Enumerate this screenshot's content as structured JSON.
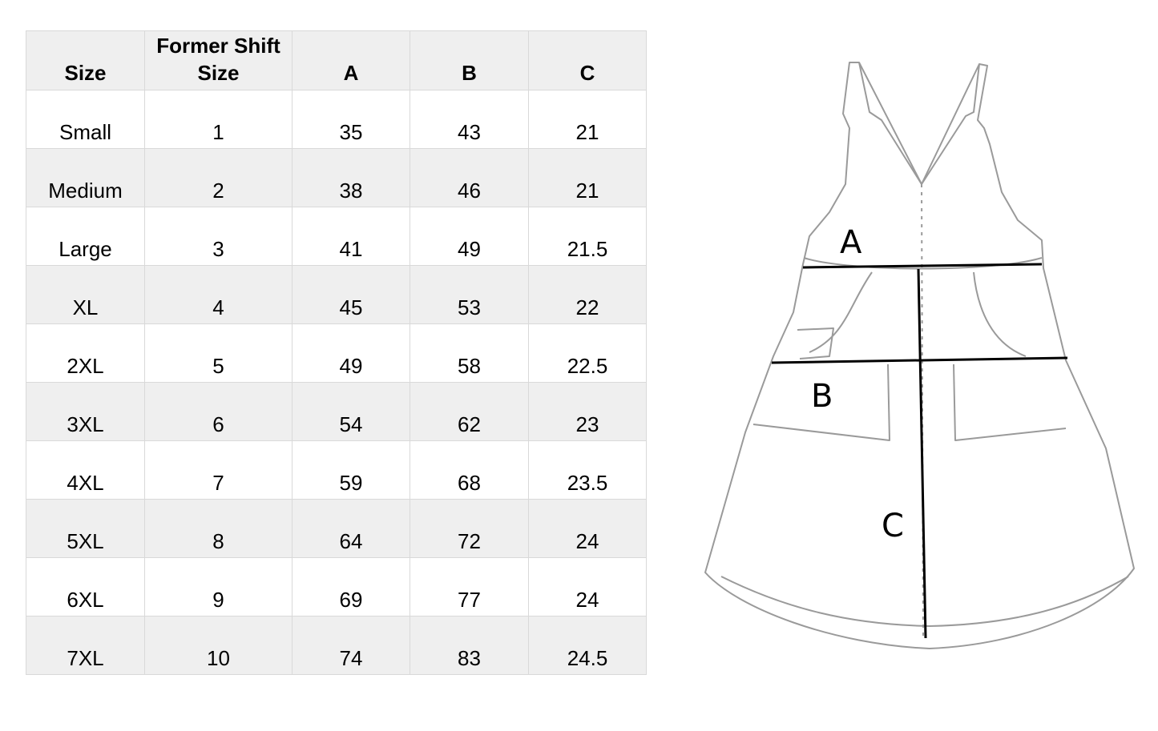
{
  "table": {
    "headers": [
      "Size",
      "Former Shift Size",
      "A",
      "B",
      "C"
    ],
    "rows": [
      [
        "Small",
        "1",
        "35",
        "43",
        "21"
      ],
      [
        "Medium",
        "2",
        "38",
        "46",
        "21"
      ],
      [
        "Large",
        "3",
        "41",
        "49",
        "21.5"
      ],
      [
        "XL",
        "4",
        "45",
        "53",
        "22"
      ],
      [
        "2XL",
        "5",
        "49",
        "58",
        "22.5"
      ],
      [
        "3XL",
        "6",
        "54",
        "62",
        "23"
      ],
      [
        "4XL",
        "7",
        "59",
        "68",
        "23.5"
      ],
      [
        "5XL",
        "8",
        "64",
        "72",
        "24"
      ],
      [
        "6XL",
        "9",
        "69",
        "77",
        "24"
      ],
      [
        "7XL",
        "10",
        "74",
        "83",
        "24.5"
      ]
    ]
  },
  "diagram": {
    "labels": {
      "a": "A",
      "b": "B",
      "c": "C"
    }
  },
  "colors": {
    "header_bg": "#efefef",
    "shade_bg": "#efefef",
    "sketch": "#9a9a9a"
  }
}
